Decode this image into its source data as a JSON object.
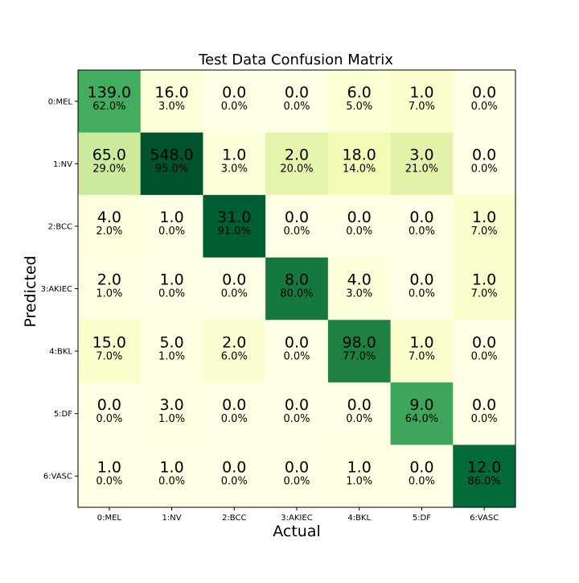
{
  "chart_data": {
    "type": "heatmap",
    "title": "Test Data Confusion Matrix",
    "xlabel": "Actual",
    "ylabel": "Predicted",
    "x_categories": [
      "0:MEL",
      "1:NV",
      "2:BCC",
      "3:AKIEC",
      "4:BKL",
      "5:DF",
      "6:VASC"
    ],
    "y_categories": [
      "0:MEL",
      "1:NV",
      "2:BCC",
      "3:AKIEC",
      "4:BKL",
      "5:DF",
      "6:VASC"
    ],
    "counts": [
      [
        "139.0",
        "16.0",
        "0.0",
        "0.0",
        "6.0",
        "1.0",
        "0.0"
      ],
      [
        "65.0",
        "548.0",
        "1.0",
        "2.0",
        "18.0",
        "3.0",
        "0.0"
      ],
      [
        "4.0",
        "1.0",
        "31.0",
        "0.0",
        "0.0",
        "0.0",
        "1.0"
      ],
      [
        "2.0",
        "1.0",
        "0.0",
        "8.0",
        "4.0",
        "0.0",
        "1.0"
      ],
      [
        "15.0",
        "5.0",
        "2.0",
        "0.0",
        "98.0",
        "1.0",
        "0.0"
      ],
      [
        "0.0",
        "3.0",
        "0.0",
        "0.0",
        "0.0",
        "9.0",
        "0.0"
      ],
      [
        "1.0",
        "1.0",
        "0.0",
        "0.0",
        "1.0",
        "0.0",
        "12.0"
      ]
    ],
    "percents": [
      [
        "62.0%",
        "3.0%",
        "0.0%",
        "0.0%",
        "5.0%",
        "7.0%",
        "0.0%"
      ],
      [
        "29.0%",
        "95.0%",
        "3.0%",
        "20.0%",
        "14.0%",
        "21.0%",
        "0.0%"
      ],
      [
        "2.0%",
        "0.0%",
        "91.0%",
        "0.0%",
        "0.0%",
        "0.0%",
        "7.0%"
      ],
      [
        "1.0%",
        "0.0%",
        "0.0%",
        "80.0%",
        "3.0%",
        "0.0%",
        "7.0%"
      ],
      [
        "7.0%",
        "1.0%",
        "6.0%",
        "0.0%",
        "77.0%",
        "7.0%",
        "0.0%"
      ],
      [
        "0.0%",
        "1.0%",
        "0.0%",
        "0.0%",
        "0.0%",
        "64.0%",
        "0.0%"
      ],
      [
        "0.0%",
        "0.0%",
        "0.0%",
        "0.0%",
        "1.0%",
        "0.0%",
        "86.0%"
      ]
    ],
    "colormap": "YlGn",
    "grid": false
  }
}
